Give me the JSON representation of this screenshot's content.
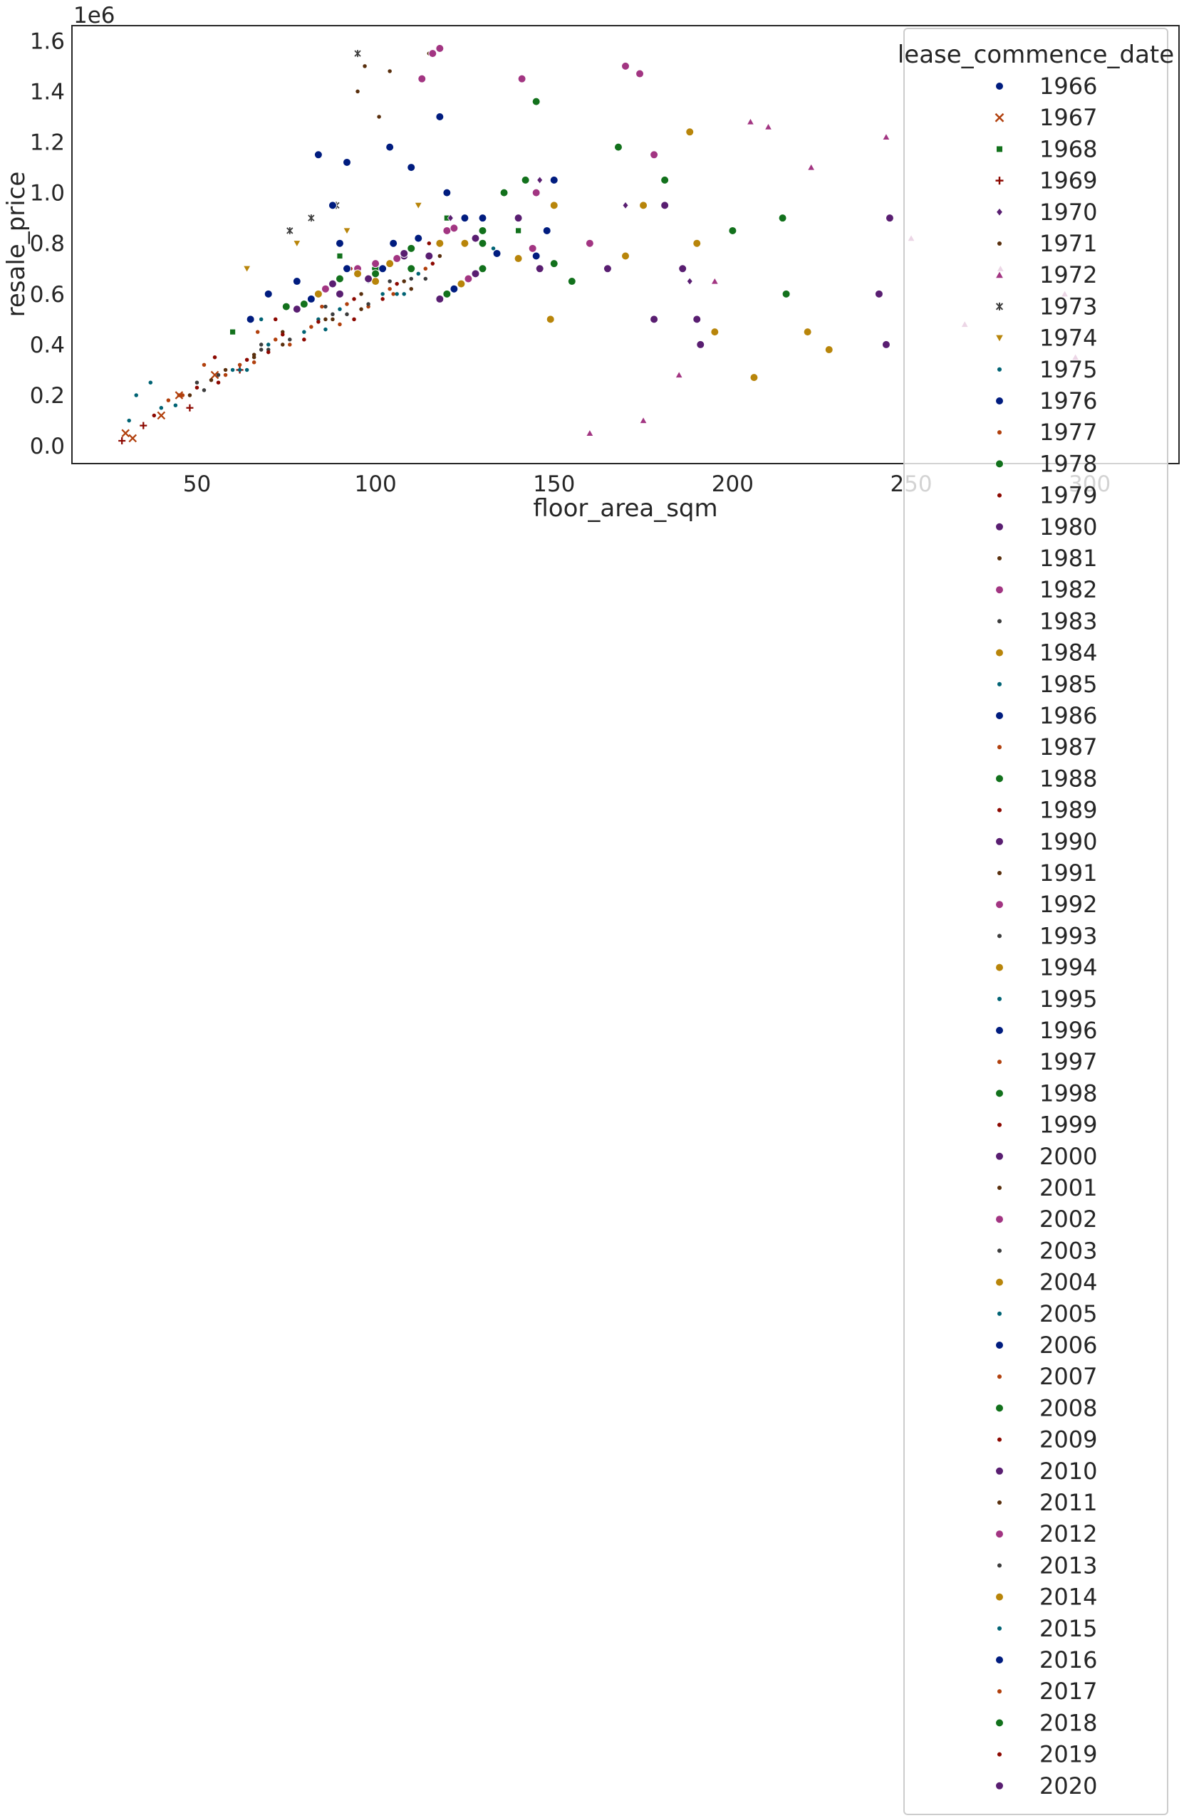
{
  "chart_data": {
    "type": "scatter",
    "title": "",
    "xlabel": "floor_area_sqm",
    "ylabel": "resale_price",
    "y_offset_label": "1e6",
    "xlim": [
      15,
      325
    ],
    "ylim": [
      -0.07,
      1.66
    ],
    "x_ticks": [
      50,
      100,
      150,
      200,
      250,
      300
    ],
    "y_ticks": [
      0.0,
      0.2,
      0.4,
      0.6,
      0.8,
      1.0,
      1.2,
      1.4,
      1.6
    ],
    "x_tick_labels": [
      "50",
      "100",
      "150",
      "200",
      "250",
      "300"
    ],
    "y_tick_labels": [
      "0.0",
      "0.2",
      "0.4",
      "0.6",
      "0.8",
      "1.0",
      "1.2",
      "1.4",
      "1.6"
    ],
    "grid": false,
    "legend_placement": "upper right, extending below the axes",
    "legend": {
      "title": "lease_commence_date",
      "entries": [
        {
          "label": "1966",
          "marker": "circle",
          "color": "#001c7f"
        },
        {
          "label": "1967",
          "marker": "x",
          "color": "#b1400d"
        },
        {
          "label": "1968",
          "marker": "square",
          "color": "#12711c"
        },
        {
          "label": "1969",
          "marker": "plus",
          "color": "#8c0800"
        },
        {
          "label": "1970",
          "marker": "diamond",
          "color": "#591e71"
        },
        {
          "label": "1971",
          "marker": "dot",
          "color": "#592f0d"
        },
        {
          "label": "1972",
          "marker": "triangle-up",
          "color": "#a23582"
        },
        {
          "label": "1973",
          "marker": "tri-x",
          "color": "#3c3c3c"
        },
        {
          "label": "1974",
          "marker": "triangle-down",
          "color": "#b8850a"
        },
        {
          "label": "1975",
          "marker": "dot",
          "color": "#006374"
        },
        {
          "label": "1976",
          "marker": "circle",
          "color": "#001c7f"
        },
        {
          "label": "1977",
          "marker": "dot",
          "color": "#b1400d"
        },
        {
          "label": "1978",
          "marker": "circle",
          "color": "#12711c"
        },
        {
          "label": "1979",
          "marker": "dot",
          "color": "#8c0800"
        },
        {
          "label": "1980",
          "marker": "circle",
          "color": "#591e71"
        },
        {
          "label": "1981",
          "marker": "dot",
          "color": "#592f0d"
        },
        {
          "label": "1982",
          "marker": "circle",
          "color": "#a23582"
        },
        {
          "label": "1983",
          "marker": "dot",
          "color": "#3c3c3c"
        },
        {
          "label": "1984",
          "marker": "circle",
          "color": "#b8850a"
        },
        {
          "label": "1985",
          "marker": "dot",
          "color": "#006374"
        },
        {
          "label": "1986",
          "marker": "circle",
          "color": "#001c7f"
        },
        {
          "label": "1987",
          "marker": "dot",
          "color": "#b1400d"
        },
        {
          "label": "1988",
          "marker": "circle",
          "color": "#12711c"
        },
        {
          "label": "1989",
          "marker": "dot",
          "color": "#8c0800"
        },
        {
          "label": "1990",
          "marker": "circle",
          "color": "#591e71"
        },
        {
          "label": "1991",
          "marker": "dot",
          "color": "#592f0d"
        },
        {
          "label": "1992",
          "marker": "circle",
          "color": "#a23582"
        },
        {
          "label": "1993",
          "marker": "dot",
          "color": "#3c3c3c"
        },
        {
          "label": "1994",
          "marker": "circle",
          "color": "#b8850a"
        },
        {
          "label": "1995",
          "marker": "dot",
          "color": "#006374"
        },
        {
          "label": "1996",
          "marker": "circle",
          "color": "#001c7f"
        },
        {
          "label": "1997",
          "marker": "dot",
          "color": "#b1400d"
        },
        {
          "label": "1998",
          "marker": "circle",
          "color": "#12711c"
        },
        {
          "label": "1999",
          "marker": "dot",
          "color": "#8c0800"
        },
        {
          "label": "2000",
          "marker": "circle",
          "color": "#591e71"
        },
        {
          "label": "2001",
          "marker": "dot",
          "color": "#592f0d"
        },
        {
          "label": "2002",
          "marker": "circle",
          "color": "#a23582"
        },
        {
          "label": "2003",
          "marker": "dot",
          "color": "#3c3c3c"
        },
        {
          "label": "2004",
          "marker": "circle",
          "color": "#b8850a"
        },
        {
          "label": "2005",
          "marker": "dot",
          "color": "#006374"
        },
        {
          "label": "2006",
          "marker": "circle",
          "color": "#001c7f"
        },
        {
          "label": "2007",
          "marker": "dot",
          "color": "#b1400d"
        },
        {
          "label": "2008",
          "marker": "circle",
          "color": "#12711c"
        },
        {
          "label": "2009",
          "marker": "dot",
          "color": "#8c0800"
        },
        {
          "label": "2010",
          "marker": "circle",
          "color": "#591e71"
        },
        {
          "label": "2011",
          "marker": "dot",
          "color": "#592f0d"
        },
        {
          "label": "2012",
          "marker": "circle",
          "color": "#a23582"
        },
        {
          "label": "2013",
          "marker": "dot",
          "color": "#3c3c3c"
        },
        {
          "label": "2014",
          "marker": "circle",
          "color": "#b8850a"
        },
        {
          "label": "2015",
          "marker": "dot",
          "color": "#006374"
        },
        {
          "label": "2016",
          "marker": "circle",
          "color": "#001c7f"
        },
        {
          "label": "2017",
          "marker": "dot",
          "color": "#b1400d"
        },
        {
          "label": "2018",
          "marker": "circle",
          "color": "#12711c"
        },
        {
          "label": "2019",
          "marker": "dot",
          "color": "#8c0800"
        },
        {
          "label": "2020",
          "marker": "circle",
          "color": "#591e71"
        }
      ]
    },
    "series": [
      {
        "name": "1966",
        "x": [
          84,
          92,
          104,
          118,
          150
        ],
        "y": [
          1.15,
          1.12,
          1.18,
          1.3,
          1.05
        ]
      },
      {
        "name": "1967",
        "x": [
          30,
          32,
          40,
          45,
          55
        ],
        "y": [
          0.05,
          0.03,
          0.12,
          0.2,
          0.28
        ]
      },
      {
        "name": "1968",
        "x": [
          60,
          70,
          90,
          120,
          140
        ],
        "y": [
          0.45,
          0.6,
          0.75,
          0.9,
          0.85
        ]
      },
      {
        "name": "1969",
        "x": [
          29,
          35,
          48,
          62
        ],
        "y": [
          0.02,
          0.08,
          0.15,
          0.3
        ]
      },
      {
        "name": "1970",
        "x": [
          121,
          146,
          170,
          188
        ],
        "y": [
          0.9,
          1.05,
          0.95,
          0.65
        ]
      },
      {
        "name": "1971",
        "x": [
          95,
          97,
          101,
          104,
          115
        ],
        "y": [
          1.4,
          1.5,
          1.3,
          1.48,
          1.55
        ]
      },
      {
        "name": "1972",
        "x": [
          160,
          175,
          185,
          195,
          205,
          210,
          222,
          243,
          250,
          265,
          275,
          293,
          296
        ],
        "y": [
          0.05,
          0.1,
          0.28,
          0.65,
          1.28,
          1.26,
          1.1,
          1.22,
          0.82,
          0.48,
          0.7,
          0.6,
          0.35
        ]
      },
      {
        "name": "1973",
        "x": [
          76,
          82,
          89,
          95
        ],
        "y": [
          0.85,
          0.9,
          0.95,
          1.55
        ]
      },
      {
        "name": "1974",
        "x": [
          64,
          78,
          92,
          112
        ],
        "y": [
          0.7,
          0.8,
          0.85,
          0.95
        ]
      },
      {
        "name": "1975",
        "x": [
          31,
          33,
          37,
          68,
          98,
          133
        ],
        "y": [
          0.1,
          0.2,
          0.25,
          0.5,
          0.65,
          0.78
        ]
      },
      {
        "name": "1976",
        "x": [
          65,
          78,
          88,
          110,
          130
        ],
        "y": [
          0.5,
          0.65,
          0.95,
          1.1,
          0.9
        ]
      },
      {
        "name": "1977",
        "x": [
          45,
          52,
          67,
          85,
          105
        ],
        "y": [
          0.2,
          0.32,
          0.45,
          0.55,
          0.6
        ]
      },
      {
        "name": "1978",
        "x": [
          136,
          142,
          145,
          168,
          181,
          200,
          214,
          215
        ],
        "y": [
          1.0,
          1.05,
          1.36,
          1.18,
          1.05,
          0.85,
          0.9,
          0.6
        ]
      },
      {
        "name": "1979",
        "x": [
          55,
          72,
          93,
          115
        ],
        "y": [
          0.35,
          0.5,
          0.7,
          0.8
        ]
      },
      {
        "name": "1980",
        "x": [
          178,
          181,
          186,
          190,
          191,
          241,
          243,
          244
        ],
        "y": [
          0.5,
          0.95,
          0.7,
          0.5,
          0.4,
          0.6,
          0.4,
          0.9
        ]
      },
      {
        "name": "1981",
        "x": [
          58,
          74,
          96,
          118
        ],
        "y": [
          0.3,
          0.45,
          0.6,
          0.75
        ]
      },
      {
        "name": "1982",
        "x": [
          113,
          116,
          118,
          141,
          170,
          174,
          178
        ],
        "y": [
          1.45,
          1.55,
          1.57,
          1.45,
          1.5,
          1.47,
          1.15
        ]
      },
      {
        "name": "1983",
        "x": [
          50,
          68,
          86,
          104
        ],
        "y": [
          0.25,
          0.4,
          0.55,
          0.65
        ]
      },
      {
        "name": "1984",
        "x": [
          149,
          175,
          188,
          190,
          195,
          206,
          221,
          227
        ],
        "y": [
          0.5,
          0.95,
          1.24,
          0.8,
          0.45,
          0.27,
          0.45,
          0.38
        ]
      },
      {
        "name": "1985",
        "x": [
          40,
          62,
          84,
          106
        ],
        "y": [
          0.15,
          0.3,
          0.5,
          0.6
        ]
      },
      {
        "name": "1986",
        "x": [
          70,
          90,
          120,
          145
        ],
        "y": [
          0.6,
          0.8,
          1.0,
          0.75
        ]
      },
      {
        "name": "1987",
        "x": [
          42,
          58,
          76,
          98
        ],
        "y": [
          0.18,
          0.28,
          0.4,
          0.55
        ]
      },
      {
        "name": "1988",
        "x": [
          75,
          100,
          130,
          155
        ],
        "y": [
          0.55,
          0.7,
          0.85,
          0.65
        ]
      },
      {
        "name": "1989",
        "x": [
          38,
          56,
          80,
          102
        ],
        "y": [
          0.12,
          0.25,
          0.42,
          0.58
        ]
      },
      {
        "name": "1990",
        "x": [
          90,
          115,
          140,
          165
        ],
        "y": [
          0.6,
          0.75,
          0.9,
          0.7
        ]
      },
      {
        "name": "1991",
        "x": [
          48,
          66,
          88,
          110
        ],
        "y": [
          0.2,
          0.35,
          0.5,
          0.62
        ]
      },
      {
        "name": "1992",
        "x": [
          95,
          120,
          145,
          160
        ],
        "y": [
          0.7,
          0.85,
          1.0,
          0.8
        ]
      },
      {
        "name": "1993",
        "x": [
          52,
          70,
          92,
          114
        ],
        "y": [
          0.22,
          0.38,
          0.52,
          0.66
        ]
      },
      {
        "name": "1994",
        "x": [
          100,
          125,
          150,
          170
        ],
        "y": [
          0.65,
          0.8,
          0.95,
          0.75
        ]
      },
      {
        "name": "1995",
        "x": [
          44,
          64,
          86,
          108
        ],
        "y": [
          0.16,
          0.3,
          0.46,
          0.6
        ]
      },
      {
        "name": "1996",
        "x": [
          105,
          125,
          148
        ],
        "y": [
          0.8,
          0.9,
          0.85
        ]
      },
      {
        "name": "1997",
        "x": [
          46,
          66,
          90
        ],
        "y": [
          0.2,
          0.33,
          0.48
        ]
      },
      {
        "name": "1998",
        "x": [
          110,
          130,
          150
        ],
        "y": [
          0.7,
          0.8,
          0.72
        ]
      },
      {
        "name": "1999",
        "x": [
          50,
          70,
          94
        ],
        "y": [
          0.23,
          0.37,
          0.5
        ]
      },
      {
        "name": "2000",
        "x": [
          108,
          128,
          146
        ],
        "y": [
          0.75,
          0.82,
          0.7
        ]
      },
      {
        "name": "2001",
        "x": [
          54,
          74,
          96
        ],
        "y": [
          0.26,
          0.4,
          0.54
        ]
      },
      {
        "name": "2002",
        "x": [
          100,
          122,
          144
        ],
        "y": [
          0.72,
          0.86,
          0.78
        ]
      },
      {
        "name": "2003",
        "x": [
          56,
          76,
          98
        ],
        "y": [
          0.28,
          0.42,
          0.56
        ]
      },
      {
        "name": "2004",
        "x": [
          95,
          118,
          140
        ],
        "y": [
          0.68,
          0.8,
          0.74
        ]
      },
      {
        "name": "2005",
        "x": [
          60,
          80,
          102
        ],
        "y": [
          0.3,
          0.45,
          0.6
        ]
      },
      {
        "name": "2006",
        "x": [
          92,
          112,
          134
        ],
        "y": [
          0.7,
          0.82,
          0.76
        ]
      },
      {
        "name": "2007",
        "x": [
          62,
          82,
          104
        ],
        "y": [
          0.32,
          0.47,
          0.62
        ]
      },
      {
        "name": "2008",
        "x": [
          90,
          110,
          130
        ],
        "y": [
          0.66,
          0.78,
          0.7
        ]
      },
      {
        "name": "2009",
        "x": [
          64,
          84,
          106
        ],
        "y": [
          0.34,
          0.49,
          0.64
        ]
      },
      {
        "name": "2010",
        "x": [
          88,
          108,
          128
        ],
        "y": [
          0.64,
          0.76,
          0.68
        ]
      },
      {
        "name": "2011",
        "x": [
          66,
          86,
          108
        ],
        "y": [
          0.36,
          0.5,
          0.65
        ]
      },
      {
        "name": "2012",
        "x": [
          86,
          106,
          126
        ],
        "y": [
          0.62,
          0.74,
          0.66
        ]
      },
      {
        "name": "2013",
        "x": [
          68,
          88,
          110
        ],
        "y": [
          0.38,
          0.52,
          0.66
        ]
      },
      {
        "name": "2014",
        "x": [
          84,
          104,
          124
        ],
        "y": [
          0.6,
          0.72,
          0.64
        ]
      },
      {
        "name": "2015",
        "x": [
          70,
          90,
          112
        ],
        "y": [
          0.4,
          0.54,
          0.68
        ]
      },
      {
        "name": "2016",
        "x": [
          82,
          102,
          122
        ],
        "y": [
          0.58,
          0.7,
          0.62
        ]
      },
      {
        "name": "2017",
        "x": [
          72,
          92,
          114
        ],
        "y": [
          0.42,
          0.56,
          0.7
        ]
      },
      {
        "name": "2018",
        "x": [
          80,
          100,
          120
        ],
        "y": [
          0.56,
          0.68,
          0.6
        ]
      },
      {
        "name": "2019",
        "x": [
          74,
          94,
          116
        ],
        "y": [
          0.44,
          0.58,
          0.72
        ]
      },
      {
        "name": "2020",
        "x": [
          78,
          98,
          118
        ],
        "y": [
          0.54,
          0.66,
          0.58
        ]
      }
    ]
  }
}
